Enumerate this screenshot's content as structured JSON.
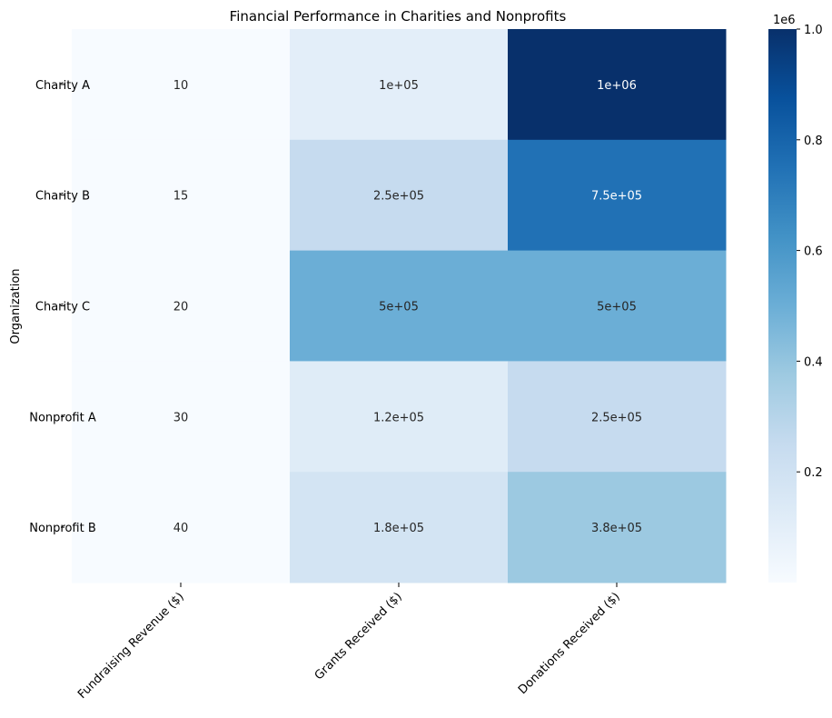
{
  "chart_data": {
    "type": "heatmap",
    "title": "Financial Performance in Charities and Nonprofits",
    "ylabel": "Organization",
    "xlabel": "",
    "rows": [
      "Charity A",
      "Charity B",
      "Charity C",
      "Nonprofit A",
      "Nonprofit B"
    ],
    "columns": [
      "Fundraising Revenue ($)",
      "Grants Received ($)",
      "Donations Received ($)"
    ],
    "values": [
      [
        10,
        100000,
        1000000
      ],
      [
        15,
        250000,
        750000
      ],
      [
        20,
        500000,
        500000
      ],
      [
        30,
        120000,
        250000
      ],
      [
        40,
        180000,
        380000
      ]
    ],
    "annotations": [
      [
        "10",
        "1e+05",
        "1e+06"
      ],
      [
        "15",
        "2.5e+05",
        "7.5e+05"
      ],
      [
        "20",
        "5e+05",
        "5e+05"
      ],
      [
        "30",
        "1.2e+05",
        "2.5e+05"
      ],
      [
        "40",
        "1.8e+05",
        "3.8e+05"
      ]
    ],
    "colormap": "Blues",
    "colorbar": {
      "range": [
        10,
        1000000
      ],
      "ticks": [
        0.2,
        0.4,
        0.6,
        0.8,
        1.0
      ],
      "tick_labels": [
        "0.2",
        "0.4",
        "0.6",
        "0.8",
        "1.0"
      ],
      "offset_label": "1e6"
    }
  }
}
